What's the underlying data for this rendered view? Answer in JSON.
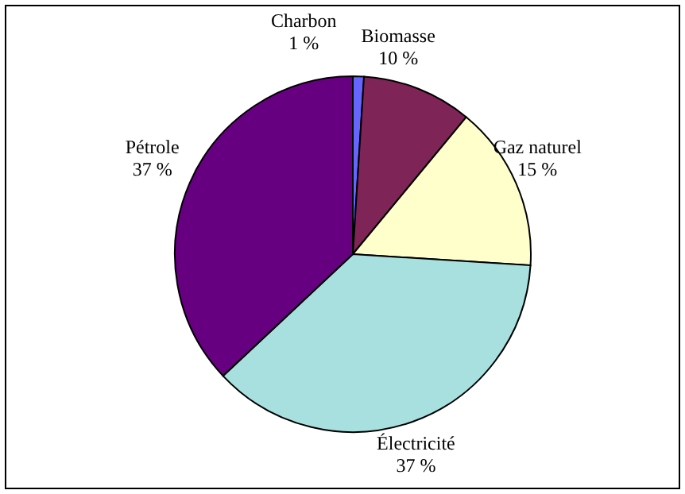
{
  "chart_data": {
    "type": "pie",
    "categories": [
      "Charbon",
      "Biomasse",
      "Gaz naturel",
      "Électricité",
      "Pétrole"
    ],
    "values": [
      1,
      10,
      15,
      37,
      37
    ],
    "colors": [
      "#6666ff",
      "#7f2456",
      "#ffffcc",
      "#a8e0e0",
      "#660080"
    ],
    "value_labels": [
      "1 %",
      "10 %",
      "15 %",
      "37 %",
      "37 %"
    ]
  }
}
